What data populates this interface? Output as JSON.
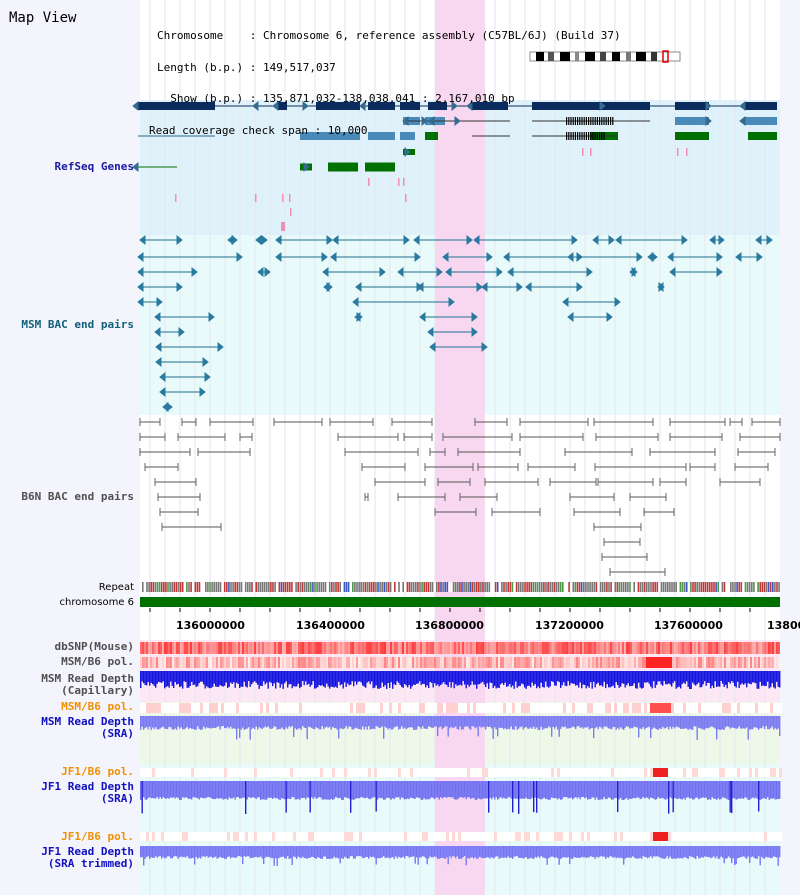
{
  "title": "Map View",
  "header": {
    "chromosome": "Chromosome    : Chromosome 6, reference assembly (C57BL/6J) (Build 37)",
    "length": "Length (b.p.) : 149,517,037",
    "show": "  Show (b.p.) : 135,871,032-138,038,041 : 2,167,010 bp",
    "coverage": "Read coverage check span : 10,000"
  },
  "tracks": {
    "refseq": "RefSeq Genes",
    "msm_bac": "MSM BAC end pairs",
    "b6n_bac": "B6N BAC end pairs",
    "repeat": "Repeat",
    "chromosome": "chromosome 6",
    "dbsnp": "dbSNP(Mouse)",
    "msm_pol": "MSM/B6 pol.",
    "msm_depth_cap": "MSM Read Depth\n(Capillary)",
    "msm_pol2": "MSM/B6 pol.",
    "msm_depth_sra": "MSM Read Depth\n(SRA)",
    "jf1_pol": "JF1/B6 pol.",
    "jf1_depth_sra": "JF1 Read Depth\n(SRA)",
    "jf1_pol2": "JF1/B6 pol.",
    "jf1_depth_trim": "JF1 Read Depth\n(SRA trimmed)"
  },
  "axis": {
    "ticks": [
      "136000000",
      "136400000",
      "136800000",
      "137200000",
      "137600000",
      "13800"
    ]
  },
  "colors": {
    "gene_dark": "#0b2a5e",
    "gene_mid": "#4a8ab8",
    "gene_green": "#007000",
    "highlight": "#f8d8f0",
    "depth_blue": "#1010e8",
    "depth_light": "#7878f4"
  }
}
